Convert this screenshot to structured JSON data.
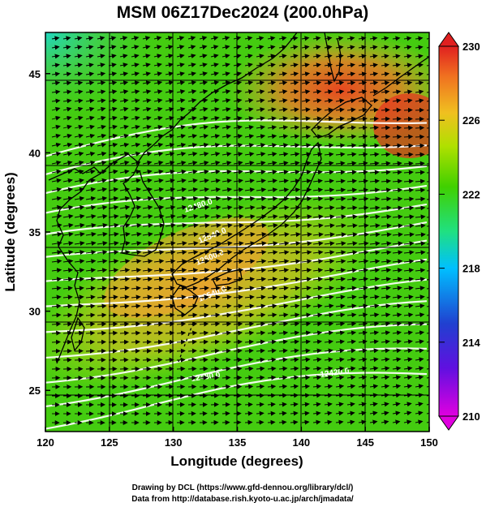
{
  "title": "MSM 06Z17Dec2024 (200.0hPa)",
  "map": {
    "lon_range": [
      120,
      150
    ],
    "lat_range": [
      22.4,
      47.6
    ],
    "x_label": "Longitude (degrees)",
    "y_label": "Latitude  (degrees)",
    "x_ticks": [
      "120",
      "125",
      "130",
      "135",
      "140",
      "145",
      "150"
    ],
    "y_ticks": [
      "25",
      "30",
      "35",
      "40",
      "45"
    ],
    "shading_variable": "temperature",
    "vectors": "wind arrows, mostly westerly to west-south-westerly",
    "contour_color": "#ffffff",
    "contour_labels": [
      "12480.0",
      "12540.0",
      "12600.0",
      "12540.0",
      "12480.0",
      "12420.0"
    ]
  },
  "colorbar": {
    "min": 210,
    "max": 230,
    "tick_labels": [
      "230",
      "226",
      "222",
      "218",
      "214",
      "210"
    ],
    "colors": [
      "#e000e0",
      "#2020d0",
      "#00c0ff",
      "#20e080",
      "#40d000",
      "#c0e000",
      "#f0b020",
      "#f06020",
      "#e02020"
    ]
  },
  "credits": {
    "line1": "Drawing by DCL (https://www.gfd-dennou.org/library/dcl/)",
    "line2": "Data from http://database.rish.kyoto-u.ac.jp/arch/jmadata/"
  }
}
